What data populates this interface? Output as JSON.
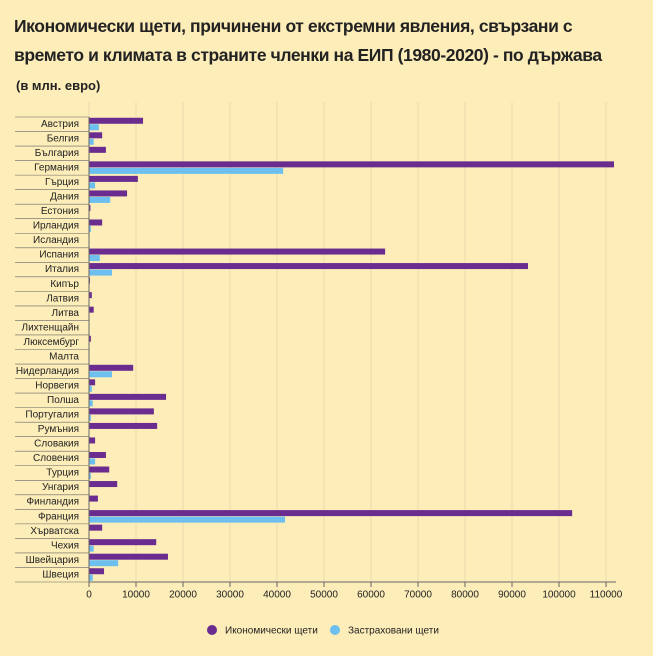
{
  "chart_data": {
    "type": "hbar",
    "title": "Икономически щети, причинени от екстремни явления, свързани с времето и климата в страните членки на ЕИП (1980-2020) - по държава",
    "subtitle": "(в млн. евро)",
    "categories": [
      "Австрия",
      "Белгия",
      "България",
      "Германия",
      "Гърция",
      "Дания",
      "Естония",
      "Ирландия",
      "Исландия",
      "Испания",
      "Италия",
      "Кипър",
      "Латвия",
      "Литва",
      "Лихтенщайн",
      "Люксембург",
      "Малта",
      "Нидерландия",
      "Норвегия",
      "Полша",
      "Португалия",
      "Румъния",
      "Словакия",
      "Словения",
      "Турция",
      "Унгария",
      "Финландия",
      "Франция",
      "Хърватска",
      "Чехия",
      "Швейцария",
      "Швеция"
    ],
    "series": [
      {
        "name": "Икономически щети",
        "color": "#6a2c8e",
        "values": [
          11500,
          2800,
          3600,
          111700,
          10400,
          8100,
          300,
          2800,
          100,
          63000,
          93400,
          200,
          600,
          1000,
          50,
          400,
          0,
          9400,
          1300,
          16400,
          13800,
          14500,
          1300,
          3600,
          4300,
          6000,
          1900,
          102800,
          2800,
          14300,
          16800,
          3200
        ]
      },
      {
        "name": "Застраховани щети",
        "color": "#6cbfee",
        "values": [
          2100,
          1000,
          0,
          41300,
          1300,
          4500,
          100,
          400,
          0,
          2300,
          4900,
          0,
          50,
          100,
          0,
          100,
          0,
          4900,
          600,
          800,
          400,
          100,
          0,
          1300,
          400,
          0,
          0,
          41700,
          0,
          1000,
          6200,
          800
        ]
      }
    ],
    "xlim": [
      0,
      110000
    ],
    "xticks": [
      0,
      10000,
      20000,
      30000,
      40000,
      50000,
      60000,
      70000,
      80000,
      90000,
      100000,
      110000
    ],
    "grid": true
  }
}
